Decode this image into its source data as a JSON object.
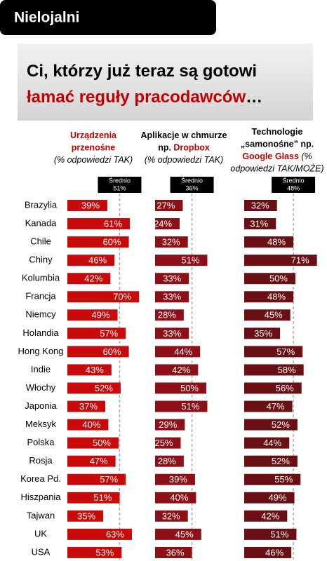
{
  "header": {
    "title": "Nielojalni"
  },
  "headline": {
    "lines": [
      [
        {
          "text": "Ci, którzy już teraz są gotowi"
        }
      ],
      [
        {
          "text": "łamać reguły pracodawców",
          "color": "#c00000"
        },
        {
          "text": "…"
        }
      ]
    ]
  },
  "chart_data": {
    "type": "bar",
    "categories": [
      "Brazylia",
      "Kanada",
      "Chile",
      "Chiny",
      "Kolumbia",
      "Francja",
      "Niemcy",
      "Holandia",
      "Hong Kong",
      "Indie",
      "Włochy",
      "Japonia",
      "Meksyk",
      "Polska",
      "Rosja",
      "Korea Pd.",
      "Hiszpania",
      "Tajwan",
      "UK",
      "USA"
    ],
    "series": [
      {
        "title_lines": [
          [
            {
              "text": "Urządzenia",
              "color": "#c00000"
            }
          ],
          [
            {
              "text": "przenośne",
              "color": "#c00000"
            }
          ],
          [
            {
              "text": "(% odpowiedzi TAK)",
              "italic": true
            }
          ]
        ],
        "color": "#c80a0a",
        "values": [
          39,
          61,
          60,
          46,
          42,
          70,
          49,
          57,
          60,
          43,
          52,
          37,
          40,
          50,
          47,
          57,
          51,
          35,
          63,
          53
        ],
        "value_labels": [
          "39%",
          "61%",
          "60%",
          "46%",
          "42%",
          "70%",
          "49%",
          "57%",
          "60%",
          "43%",
          "52%",
          "37%",
          "40%",
          "50%",
          "47%",
          "57%",
          "51%",
          "35%",
          "63%",
          "53%"
        ],
        "average": {
          "title": "Średnio",
          "value": 51,
          "label": "51%"
        }
      },
      {
        "title_lines": [
          [
            {
              "text": "Aplikacje w chmurze"
            }
          ],
          [
            {
              "text": "np. "
            },
            {
              "text": "Dropbox",
              "color": "#c00000"
            }
          ],
          [
            {
              "text": "(% odpowiedzi TAK)",
              "italic": true
            }
          ]
        ],
        "color": "#8e1016",
        "values": [
          27,
          24,
          32,
          51,
          33,
          33,
          28,
          33,
          44,
          42,
          50,
          51,
          29,
          25,
          28,
          39,
          40,
          32,
          45,
          36
        ],
        "value_labels": [
          "27%",
          "24%",
          "32%",
          "51%",
          "33%",
          "33%",
          "28%",
          "33%",
          "44%",
          "42%",
          "50%",
          "51%",
          "29%",
          "25%",
          "28%",
          "39%",
          "40%",
          "32%",
          "45%",
          "36%"
        ],
        "average": {
          "title": "Średnio",
          "value": 36,
          "label": "36%"
        }
      },
      {
        "title_lines": [
          [
            {
              "text": "Technologie"
            }
          ],
          [
            {
              "text": "„samonośne” np."
            }
          ],
          [
            {
              "text": "Google Glass",
              "color": "#c00000"
            },
            {
              "text": " (%",
              "italic": true
            }
          ],
          [
            {
              "text": "odpowiedzi TAK/MOŻE)",
              "italic": true
            }
          ]
        ],
        "color": "#6a0f13",
        "values": [
          32,
          31,
          48,
          71,
          50,
          48,
          45,
          35,
          57,
          58,
          56,
          47,
          52,
          44,
          52,
          55,
          49,
          42,
          51,
          46
        ],
        "value_labels": [
          "32%",
          "31%",
          "48%",
          "71%",
          "50%",
          "48%",
          "45%",
          "35%",
          "57%",
          "58%",
          "56%",
          "47%",
          "52%",
          "44%",
          "52%",
          "55%",
          "49%",
          "42%",
          "51%",
          "46%"
        ],
        "average": {
          "title": "Średnio",
          "value": 48,
          "label": "48%"
        }
      }
    ]
  }
}
